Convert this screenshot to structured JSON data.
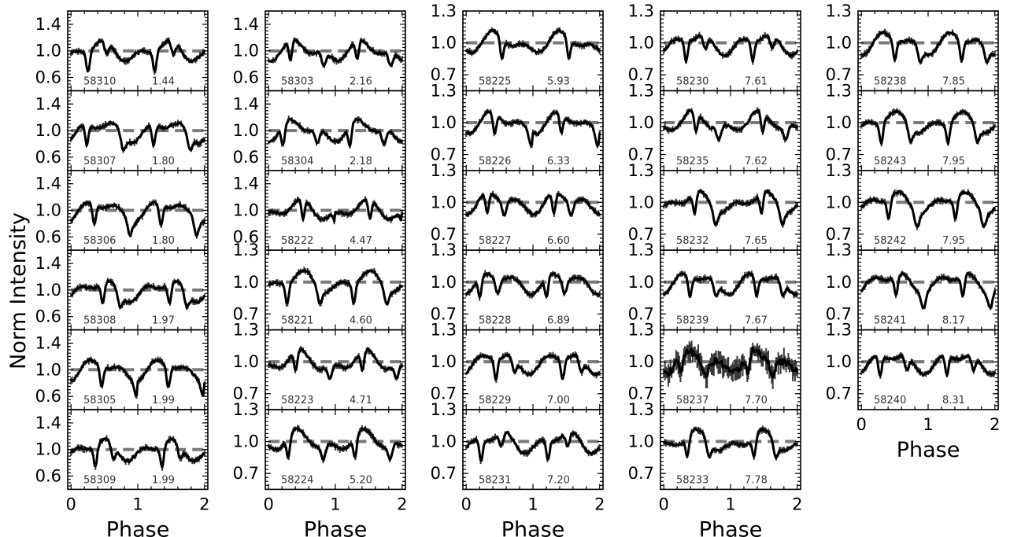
{
  "figure": {
    "ylabel": "Norm Intensity",
    "xlabel": "Phase",
    "x_ticks": [
      0,
      1,
      2
    ],
    "x_range": [
      -0.05,
      2.05
    ]
  },
  "chart_data": {
    "type": "line",
    "reference_level": 1.0,
    "columns": [
      {
        "xlabel": "Phase",
        "yticks": [
          0.6,
          1.0,
          1.4
        ],
        "ylim": [
          0.4,
          1.6
        ],
        "panels": [
          {
            "mjd": "58310",
            "value": "1.44"
          },
          {
            "mjd": "58307",
            "value": "1.80"
          },
          {
            "mjd": "58306",
            "value": "1.80"
          },
          {
            "mjd": "58308",
            "value": "1.97"
          },
          {
            "mjd": "58305",
            "value": "1.99"
          },
          {
            "mjd": "58309",
            "value": "1.99"
          }
        ]
      },
      {
        "xlabel": "Phase",
        "panels": [
          {
            "mjd": "58303",
            "value": "2.16",
            "yticks": [
              0.6,
              1.0,
              1.4
            ],
            "ylim": [
              0.4,
              1.6
            ]
          },
          {
            "mjd": "58304",
            "value": "2.18",
            "yticks": [
              0.6,
              1.0,
              1.4
            ],
            "ylim": [
              0.4,
              1.6
            ]
          },
          {
            "mjd": "58222",
            "value": "4.47",
            "yticks": [
              0.6,
              1.0,
              1.4
            ],
            "ylim": [
              0.4,
              1.6
            ]
          },
          {
            "mjd": "58221",
            "value": "4.60",
            "yticks": [
              0.7,
              1.0,
              1.3
            ],
            "ylim": [
              0.55,
              1.3
            ]
          },
          {
            "mjd": "58223",
            "value": "4.71",
            "yticks": [
              0.7,
              1.0,
              1.3
            ],
            "ylim": [
              0.55,
              1.3
            ]
          },
          {
            "mjd": "58224",
            "value": "5.20",
            "yticks": [
              0.7,
              1.0,
              1.3
            ],
            "ylim": [
              0.55,
              1.3
            ]
          }
        ]
      },
      {
        "xlabel": "Phase",
        "yticks": [
          0.7,
          1.0,
          1.3
        ],
        "ylim": [
          0.55,
          1.3
        ],
        "panels": [
          {
            "mjd": "58225",
            "value": "5.93"
          },
          {
            "mjd": "58226",
            "value": "6.33"
          },
          {
            "mjd": "58227",
            "value": "6.60"
          },
          {
            "mjd": "58228",
            "value": "6.89"
          },
          {
            "mjd": "58229",
            "value": "7.00"
          },
          {
            "mjd": "58231",
            "value": "7.20"
          }
        ]
      },
      {
        "xlabel": "Phase",
        "yticks": [
          0.7,
          1.0,
          1.3
        ],
        "ylim": [
          0.55,
          1.3
        ],
        "panels": [
          {
            "mjd": "58230",
            "value": "7.61"
          },
          {
            "mjd": "58235",
            "value": "7.62"
          },
          {
            "mjd": "58232",
            "value": "7.65"
          },
          {
            "mjd": "58239",
            "value": "7.67"
          },
          {
            "mjd": "58237",
            "value": "7.70"
          },
          {
            "mjd": "58233",
            "value": "7.78"
          }
        ]
      },
      {
        "xlabel": "Phase",
        "yticks": [
          0.7,
          1.0,
          1.3
        ],
        "ylim": [
          0.55,
          1.3
        ],
        "panels": [
          {
            "mjd": "58238",
            "value": "7.85"
          },
          {
            "mjd": "58243",
            "value": "7.95"
          },
          {
            "mjd": "58242",
            "value": "7.95"
          },
          {
            "mjd": "58241",
            "value": "8.17"
          },
          {
            "mjd": "58240",
            "value": "8.31"
          }
        ]
      }
    ]
  }
}
